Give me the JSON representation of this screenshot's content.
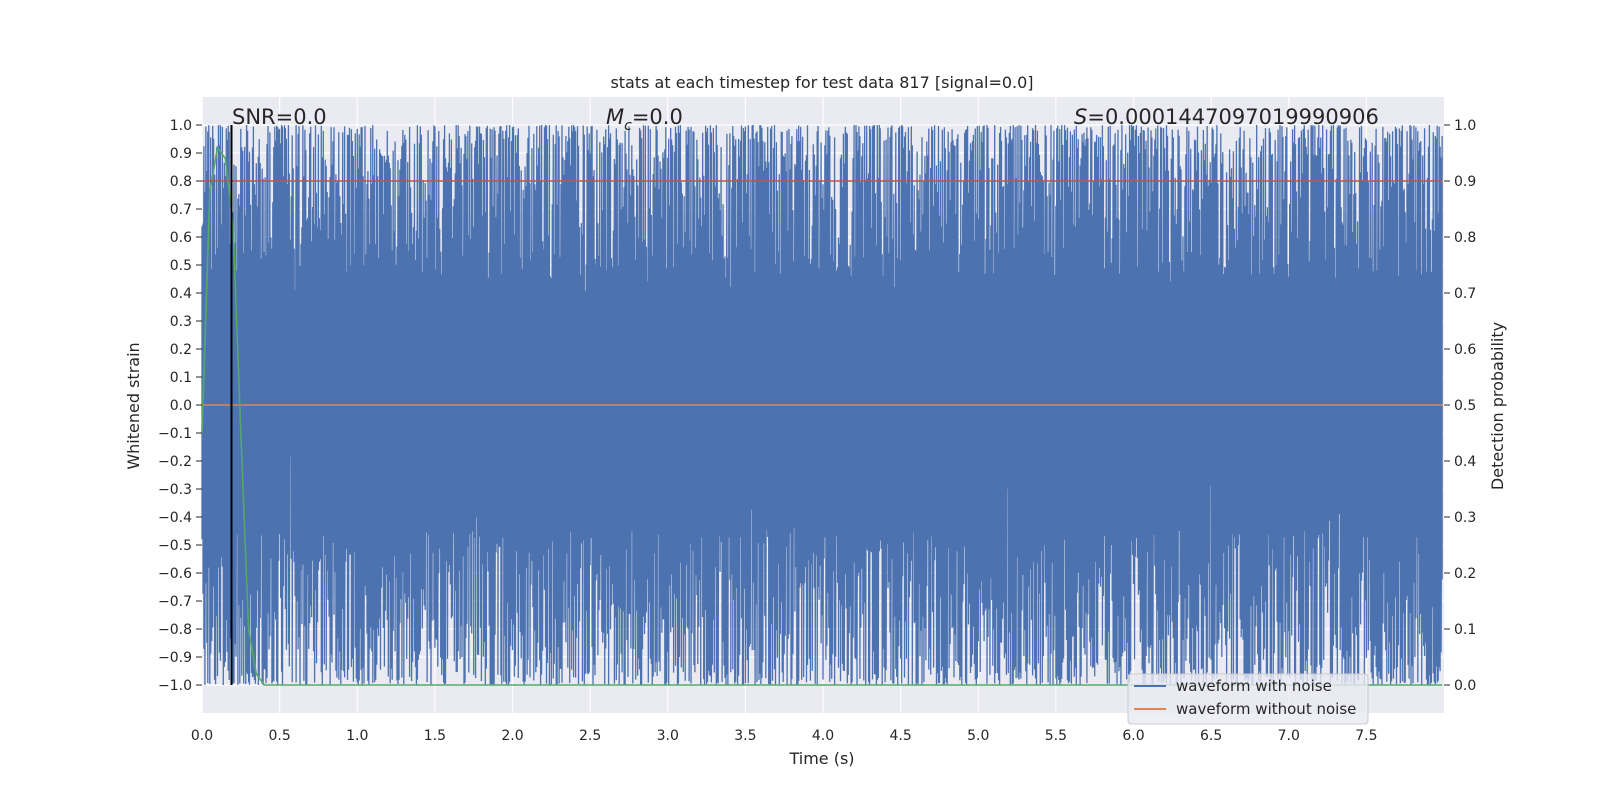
{
  "chart_data": {
    "type": "line",
    "title": "stats at each timestep for test data 817 [signal=0.0]",
    "xlabel": "Time (s)",
    "ylabel_left": "Whitened strain",
    "ylabel_right": "Detection probability",
    "xlim": [
      0.0,
      8.0
    ],
    "ylim_left": [
      -1.1,
      1.1
    ],
    "ylim_right": [
      -0.05,
      1.05
    ],
    "xticks": [
      "0.0",
      "0.5",
      "1.0",
      "1.5",
      "2.0",
      "2.5",
      "3.0",
      "3.5",
      "4.0",
      "4.5",
      "5.0",
      "5.5",
      "6.0",
      "6.5",
      "7.0",
      "7.5"
    ],
    "xtick_values": [
      0.0,
      0.5,
      1.0,
      1.5,
      2.0,
      2.5,
      3.0,
      3.5,
      4.0,
      4.5,
      5.0,
      5.5,
      6.0,
      6.5,
      7.0,
      7.5
    ],
    "yticks_left": [
      "1.0",
      "0.9",
      "0.8",
      "0.7",
      "0.6",
      "0.5",
      "0.4",
      "0.3",
      "0.2",
      "0.1",
      "0.0",
      "−0.1",
      "−0.2",
      "−0.3",
      "−0.4",
      "−0.5",
      "−0.6",
      "−0.7",
      "−0.8",
      "−0.9",
      "−1.0"
    ],
    "ytick_values_left": [
      1.0,
      0.9,
      0.8,
      0.7,
      0.6,
      0.5,
      0.4,
      0.3,
      0.2,
      0.1,
      0.0,
      -0.1,
      -0.2,
      -0.3,
      -0.4,
      -0.5,
      -0.6,
      -0.7,
      -0.8,
      -0.9,
      -1.0
    ],
    "yticks_right": [
      "1.0",
      "0.9",
      "0.8",
      "0.7",
      "0.6",
      "0.5",
      "0.4",
      "0.3",
      "0.2",
      "0.1",
      "0.0"
    ],
    "ytick_values_right": [
      1.0,
      0.9,
      0.8,
      0.7,
      0.6,
      0.5,
      0.4,
      0.3,
      0.2,
      0.1,
      0.0
    ],
    "annotations": {
      "snr": "SNR=0.0",
      "mc_symbol": "M",
      "mc_sub": "c",
      "mc_value": "=0.0",
      "s_symbol": "S",
      "s_value": "=0.0001447097019990906"
    },
    "series": [
      {
        "name": "waveform with noise",
        "axis": "left",
        "color": "#4c72b0",
        "description": "whitened noisy strain, oscillating densely between about -1.0 and 1.0",
        "x_range": [
          0.0,
          7.99
        ],
        "y_range": [
          -1.0,
          1.0
        ],
        "samples_per_second": 160
      },
      {
        "name": "waveform without noise",
        "axis": "left",
        "color": "#dd8452",
        "x": [
          0.0,
          7.99
        ],
        "y": [
          0.0,
          0.0
        ]
      },
      {
        "name": "detection probability",
        "axis": "right",
        "color": "#55a868",
        "x": [
          0.0,
          0.05,
          0.1,
          0.15,
          0.2,
          0.25,
          0.3,
          0.35,
          0.4,
          1.0,
          2.0,
          3.0,
          4.0,
          5.0,
          6.0,
          7.0,
          7.99
        ],
        "y": [
          0.45,
          0.88,
          0.96,
          0.94,
          0.82,
          0.45,
          0.1,
          0.02,
          0.0,
          0.0,
          0.0,
          0.0,
          0.0,
          0.0,
          0.0,
          0.0,
          0.0
        ]
      },
      {
        "name": "threshold",
        "axis": "right",
        "color": "#c44e52",
        "x": [
          0.0,
          7.99
        ],
        "y": [
          0.9,
          0.9
        ]
      }
    ],
    "vertical_marker": {
      "x": 0.19,
      "color": "#000000"
    },
    "legend": {
      "placement": "lower-right",
      "entries": [
        {
          "label": "waveform with noise",
          "color": "#4c72b0"
        },
        {
          "label": "waveform without noise",
          "color": "#dd8452"
        }
      ]
    },
    "background": "#eaeaf2",
    "grid": true
  }
}
